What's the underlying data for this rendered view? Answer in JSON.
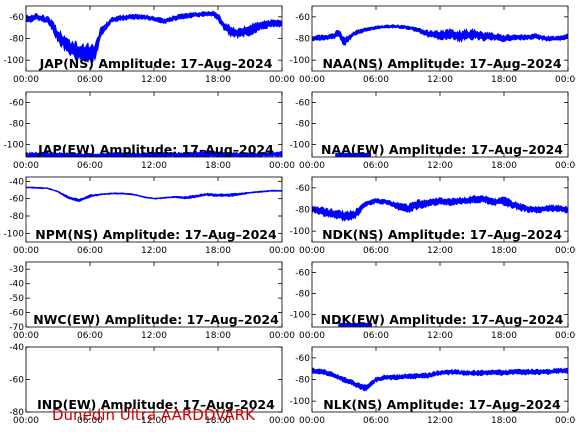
{
  "footer": "Dunedin Ultra AARDDVARK",
  "colors": {
    "trace": "#0000ff",
    "axes": "#000000",
    "footer": "#cc0000"
  },
  "chart_data": [
    {
      "type": "line",
      "title": "JAP(NS) Amplitude: 17–Aug–2024",
      "xticks": [
        "00:00",
        "06:00",
        "12:00",
        "18:00",
        "00:00"
      ],
      "xlim": [
        0,
        24
      ],
      "yticks": [
        "-60",
        "-80",
        "-100"
      ],
      "ylim": [
        -110,
        -50
      ],
      "band": {
        "x": [
          0,
          0.5,
          1,
          2,
          2.5,
          3,
          3.8,
          4.5,
          5.5,
          6.5,
          7,
          8,
          9,
          10,
          11,
          12,
          13,
          14,
          15,
          16,
          17,
          17.5,
          18,
          18.5,
          19,
          19.5,
          20,
          21,
          22,
          23,
          24
        ],
        "y": [
          -61,
          -62,
          -60,
          -63,
          -68,
          -78,
          -86,
          -91,
          -93,
          -93,
          -75,
          -63,
          -61,
          -60,
          -60,
          -62,
          -64,
          -61,
          -59,
          -58,
          -57,
          -57,
          -60,
          -68,
          -72,
          -75,
          -75,
          -72,
          -68,
          -66,
          -66
        ],
        "spread": [
          4,
          4,
          4,
          4,
          6,
          8,
          10,
          10,
          10,
          10,
          6,
          3,
          3,
          3,
          3,
          3,
          3,
          3,
          3,
          3,
          3,
          3,
          4,
          5,
          6,
          6,
          6,
          6,
          5,
          4,
          4
        ]
      }
    },
    {
      "type": "line",
      "title": "NAA(NS) Amplitude: 17–Aug–2024",
      "xticks": [
        "00:00",
        "06:00",
        "12:00",
        "18:00",
        "00:00"
      ],
      "xlim": [
        0,
        24
      ],
      "yticks": [
        "-60",
        "-80",
        "-100"
      ],
      "ylim": [
        -110,
        -50
      ],
      "band": {
        "x": [
          0,
          1,
          2,
          2.5,
          3,
          3.5,
          4,
          5,
          6,
          7,
          8,
          9,
          10,
          11,
          12,
          13,
          14,
          15,
          16,
          17,
          18,
          19,
          20,
          21,
          22,
          23,
          24
        ],
        "y": [
          -80,
          -79,
          -78,
          -75,
          -83,
          -79,
          -75,
          -72,
          -70,
          -69,
          -69,
          -70,
          -72,
          -76,
          -77,
          -76,
          -78,
          -76,
          -78,
          -78,
          -80,
          -79,
          -79,
          -78,
          -80,
          -80,
          -78
        ],
        "spread": [
          3,
          3,
          3,
          5,
          5,
          4,
          3,
          2,
          2,
          2,
          2,
          2,
          3,
          4,
          5,
          6,
          7,
          6,
          5,
          4,
          4,
          3,
          3,
          3,
          3,
          3,
          3
        ]
      }
    },
    {
      "type": "line",
      "title": "JAP(EW) Amplitude: 17–Aug–2024",
      "xticks": [
        "00:00",
        "06:00",
        "12:00",
        "18:00",
        "00:00"
      ],
      "xlim": [
        0,
        24
      ],
      "yticks": [
        "-60",
        "-80",
        "-100"
      ],
      "ylim": [
        -112,
        -50
      ],
      "band": {
        "x": [
          0,
          3,
          6,
          9,
          12,
          15,
          17,
          18.5,
          20,
          22,
          24
        ],
        "y": [
          -110,
          -110,
          -111,
          -110,
          -110,
          -110,
          -109,
          -110,
          -110,
          -110,
          -109
        ],
        "spread": [
          3,
          3,
          3,
          3,
          3,
          3,
          4,
          3,
          3,
          3,
          3
        ]
      }
    },
    {
      "type": "line",
      "title": "NAA(EW) Amplitude: 17–Aug–2024",
      "xticks": [
        "00:00",
        "06:00",
        "12:00",
        "18:00",
        "00:00"
      ],
      "xlim": [
        0,
        24
      ],
      "yticks": [
        "-60",
        "-80",
        "-100"
      ],
      "ylim": [
        -112,
        -50
      ],
      "band": {
        "x": [
          2.2,
          5.5
        ],
        "y": [
          -110,
          -110
        ],
        "spread": [
          2,
          2
        ]
      }
    },
    {
      "type": "line",
      "title": "NPM(NS) Amplitude: 17–Aug–2024",
      "xticks": [
        "00:00",
        "06:00",
        "12:00",
        "18:00",
        "00:00"
      ],
      "xlim": [
        0,
        24
      ],
      "yticks": [
        "-40",
        "-60",
        "-80",
        "-100"
      ],
      "ylim": [
        -110,
        -35
      ],
      "band": {
        "x": [
          0,
          2,
          3,
          4,
          5,
          6,
          7,
          8,
          9,
          10,
          11,
          12,
          13,
          14,
          15,
          16,
          17,
          18,
          19,
          20,
          21,
          22,
          23,
          24
        ],
        "y": [
          -47,
          -48,
          -52,
          -59,
          -62,
          -57,
          -55,
          -54,
          -54,
          -55,
          -58,
          -60,
          -59,
          -58,
          -59,
          -57,
          -55,
          -56,
          -56,
          -55,
          -53,
          -52,
          -51,
          -51
        ],
        "spread": [
          1,
          1,
          1,
          2,
          2,
          2,
          1,
          1,
          1,
          1,
          1,
          1,
          1,
          1,
          2,
          2,
          2,
          2,
          2,
          2,
          1,
          1,
          1,
          1
        ]
      }
    },
    {
      "type": "line",
      "title": "NDK(NS) Amplitude: 17–Aug–2024",
      "xticks": [
        "00:00",
        "06:00",
        "12:00",
        "18:00",
        "00:00"
      ],
      "xlim": [
        0,
        24
      ],
      "yticks": [
        "-60",
        "-80",
        "-100"
      ],
      "ylim": [
        -110,
        -50
      ],
      "band": {
        "x": [
          0,
          1,
          2,
          3,
          4,
          4.5,
          5,
          6,
          7,
          8,
          9,
          10,
          11,
          12,
          13,
          14,
          15,
          16,
          17,
          18,
          19,
          20,
          21,
          22,
          23,
          24
        ],
        "y": [
          -80,
          -82,
          -84,
          -86,
          -85,
          -80,
          -75,
          -72,
          -73,
          -77,
          -79,
          -75,
          -74,
          -72,
          -73,
          -72,
          -71,
          -70,
          -73,
          -72,
          -76,
          -79,
          -80,
          -79,
          -79,
          -80
        ],
        "spread": [
          4,
          5,
          5,
          6,
          5,
          4,
          3,
          3,
          3,
          4,
          5,
          5,
          5,
          4,
          4,
          4,
          4,
          4,
          4,
          5,
          5,
          4,
          4,
          4,
          4,
          4
        ]
      }
    },
    {
      "type": "line",
      "title": "NWC(EW) Amplitude: 17–Aug–2024",
      "xticks": [
        "00:00",
        "06:00",
        "12:00",
        "18:00",
        "00:00"
      ],
      "xlim": [
        0,
        24
      ],
      "yticks": [
        "-30",
        "-40",
        "-50",
        "-60",
        "-70"
      ],
      "ylim": [
        -70,
        -25
      ]
    },
    {
      "type": "line",
      "title": "NDK(EW) Amplitude: 17–Aug–2024",
      "xticks": [
        "00:00",
        "06:00",
        "12:00",
        "18:00",
        "00:00"
      ],
      "xlim": [
        0,
        24
      ],
      "yticks": [
        "-60",
        "-80",
        "-100"
      ],
      "ylim": [
        -112,
        -50
      ],
      "band": {
        "x": [
          2.5,
          5.6
        ],
        "y": [
          -110,
          -110
        ],
        "spread": [
          2,
          2
        ]
      }
    },
    {
      "type": "line",
      "title": "IND(EW) Amplitude: 17–Aug–2024",
      "xticks": [
        "00:00",
        "06:00",
        "12:00",
        "18:00",
        "00:00"
      ],
      "xlim": [
        0,
        24
      ],
      "yticks": [
        "-40",
        "-60",
        "-80"
      ],
      "ylim": [
        -80,
        -40
      ]
    },
    {
      "type": "line",
      "title": "NLK(NS) Amplitude: 17–Aug–2024",
      "xticks": [
        "00:00",
        "06:00",
        "12:00",
        "18:00",
        "00:00"
      ],
      "xlim": [
        0,
        24
      ],
      "yticks": [
        "-60",
        "-80",
        "-100"
      ],
      "ylim": [
        -110,
        -50
      ],
      "band": {
        "x": [
          0,
          1,
          2,
          3,
          4,
          5,
          5.5,
          6,
          7,
          8,
          9,
          10,
          11,
          12,
          13,
          14,
          15,
          16,
          17,
          18,
          19,
          20,
          21,
          22,
          23,
          24
        ],
        "y": [
          -72,
          -73,
          -76,
          -80,
          -84,
          -88,
          -84,
          -80,
          -78,
          -78,
          -77,
          -77,
          -76,
          -74,
          -73,
          -74,
          -74,
          -74,
          -73,
          -74,
          -73,
          -73,
          -73,
          -73,
          -72,
          -72
        ],
        "spread": [
          3,
          3,
          3,
          3,
          3,
          4,
          3,
          3,
          3,
          3,
          3,
          3,
          3,
          3,
          3,
          3,
          3,
          3,
          3,
          3,
          3,
          3,
          3,
          3,
          3,
          3
        ]
      }
    }
  ]
}
